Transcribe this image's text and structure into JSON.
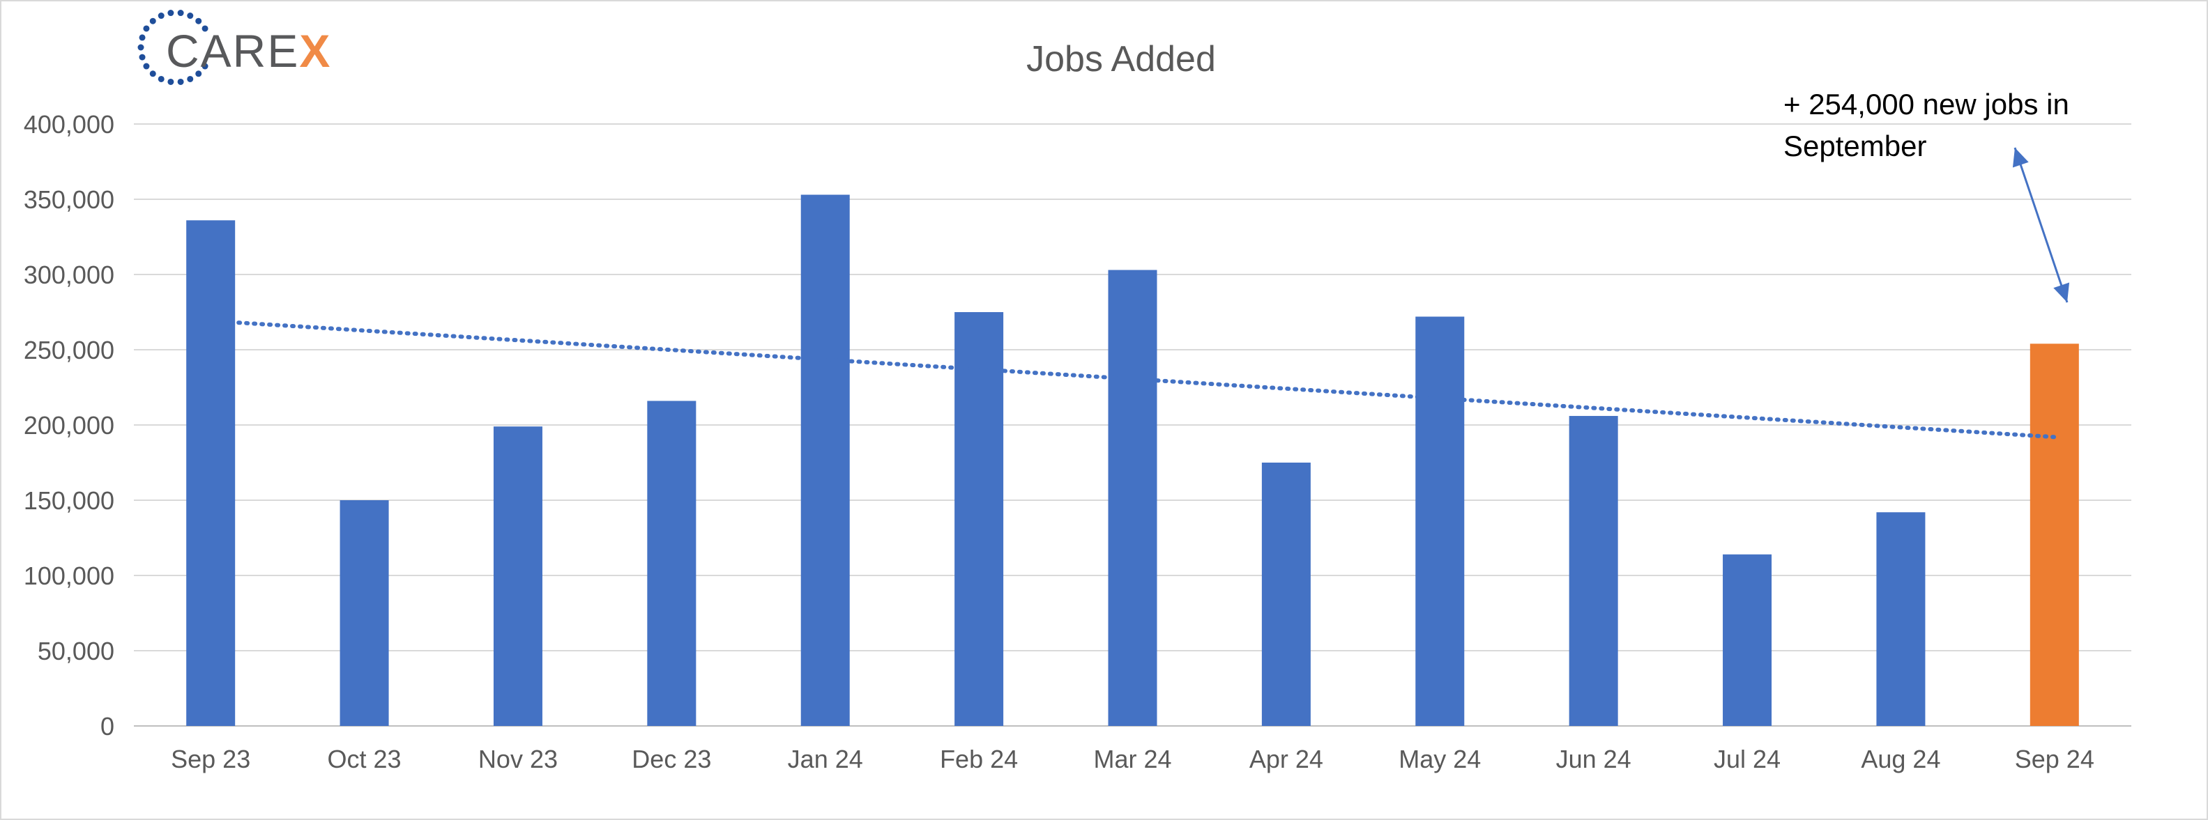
{
  "logo": {
    "text_main": "CARE",
    "text_accent": "X",
    "color_main": "#58595b",
    "color_accent": "#f08a46",
    "color_ring": "#1f4e9a"
  },
  "chart_data": {
    "type": "bar",
    "title": "Jobs Added",
    "xlabel": "",
    "ylabel": "",
    "categories": [
      "Sep 23",
      "Oct 23",
      "Nov 23",
      "Dec 23",
      "Jan 24",
      "Feb 24",
      "Mar 24",
      "Apr 24",
      "May 24",
      "Jun 24",
      "Jul 24",
      "Aug 24",
      "Sep 24"
    ],
    "values": [
      336000,
      150000,
      199000,
      216000,
      353000,
      275000,
      303000,
      175000,
      272000,
      206000,
      114000,
      142000,
      254000
    ],
    "ylim": [
      0,
      400000
    ],
    "yticks": [
      0,
      50000,
      100000,
      150000,
      200000,
      250000,
      300000,
      350000,
      400000
    ],
    "ytick_labels": [
      "0",
      "50,000",
      "100,000",
      "150,000",
      "200,000",
      "250,000",
      "300,000",
      "350,000",
      "400,000"
    ],
    "grid": true,
    "bar_color": "#4472c4",
    "highlight_color": "#ed7d31",
    "highlight_index": 12,
    "trendline": {
      "type": "linear",
      "style": "dotted",
      "color": "#4472c4",
      "start_value": 268000,
      "end_value": 192000
    },
    "annotation": {
      "lines": [
        "+ 254,000 new jobs in",
        "September"
      ],
      "target_index": 12,
      "arrow_color": "#4472c4"
    }
  }
}
